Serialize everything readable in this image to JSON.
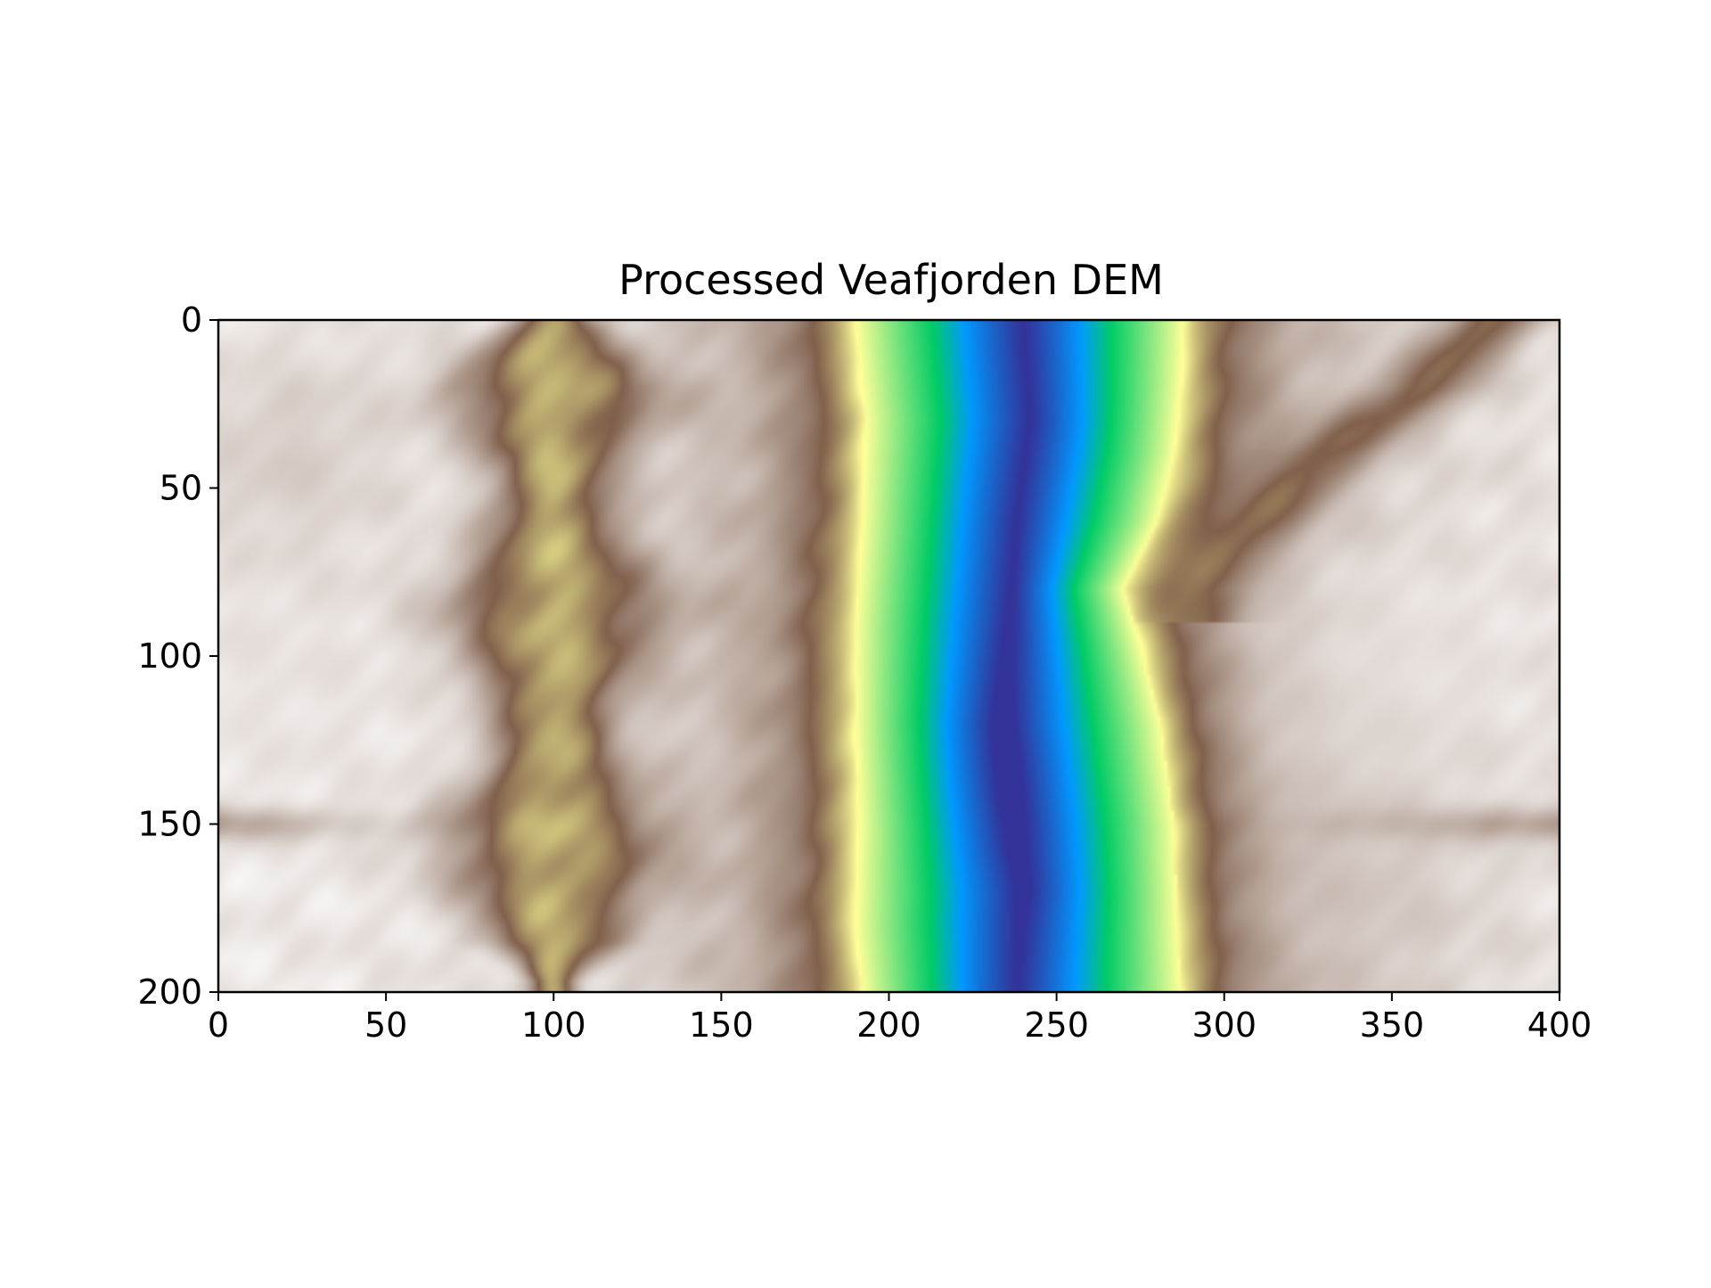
{
  "chart_data": {
    "type": "heatmap",
    "title": "Processed Veafjorden DEM",
    "xlabel": "",
    "ylabel": "",
    "xlim": [
      0,
      400
    ],
    "ylim": [
      200,
      0
    ],
    "grid": false,
    "colormap": "terrain",
    "x_ticks": [
      {
        "value": 0,
        "label": "0"
      },
      {
        "value": 50,
        "label": "50"
      },
      {
        "value": 100,
        "label": "100"
      },
      {
        "value": 150,
        "label": "150"
      },
      {
        "value": 200,
        "label": "200"
      },
      {
        "value": 250,
        "label": "250"
      },
      {
        "value": 300,
        "label": "300"
      },
      {
        "value": 350,
        "label": "350"
      },
      {
        "value": 400,
        "label": "400"
      }
    ],
    "y_ticks": [
      {
        "value": 0,
        "label": "0"
      },
      {
        "value": 50,
        "label": "50"
      },
      {
        "value": 100,
        "label": "100"
      },
      {
        "value": 150,
        "label": "150"
      },
      {
        "value": 200,
        "label": "200"
      }
    ],
    "colormap_stops": [
      {
        "v": 0.0,
        "color": "#333399"
      },
      {
        "v": 0.15,
        "color": "#0199ff"
      },
      {
        "v": 0.25,
        "color": "#01cc66"
      },
      {
        "v": 0.5,
        "color": "#ffff99"
      },
      {
        "v": 0.75,
        "color": "#80604c"
      },
      {
        "v": 1.0,
        "color": "#ffffff"
      }
    ],
    "features": {
      "fjord_center_x": 238,
      "fjord_center_wobble": [
        [
          0,
          240
        ],
        [
          30,
          242
        ],
        [
          60,
          238
        ],
        [
          90,
          236
        ],
        [
          120,
          234
        ],
        [
          140,
          236
        ],
        [
          170,
          240
        ],
        [
          200,
          238
        ]
      ],
      "fjord_left_shore": [
        [
          0,
          190
        ],
        [
          30,
          193
        ],
        [
          60,
          192
        ],
        [
          90,
          190
        ],
        [
          120,
          190
        ],
        [
          150,
          191
        ],
        [
          180,
          190
        ],
        [
          200,
          192
        ]
      ],
      "fjord_right_shore": [
        [
          0,
          288
        ],
        [
          20,
          287
        ],
        [
          40,
          285
        ],
        [
          60,
          280
        ],
        [
          80,
          270
        ],
        [
          100,
          276
        ],
        [
          120,
          281
        ],
        [
          150,
          285
        ],
        [
          180,
          286
        ],
        [
          200,
          287
        ]
      ],
      "left_valley_x": 100,
      "left_valley_floor_level": 0.63,
      "tributary_path": [
        [
          0,
          380
        ],
        [
          20,
          360
        ],
        [
          40,
          330
        ],
        [
          60,
          310
        ],
        [
          80,
          290
        ]
      ],
      "highland_peaks": [
        [
          110,
          15,
          0.95
        ],
        [
          100,
          355,
          0.97
        ],
        [
          120,
          335,
          0.94
        ],
        [
          40,
          20,
          0.88
        ],
        [
          170,
          340,
          0.9
        ]
      ]
    }
  }
}
